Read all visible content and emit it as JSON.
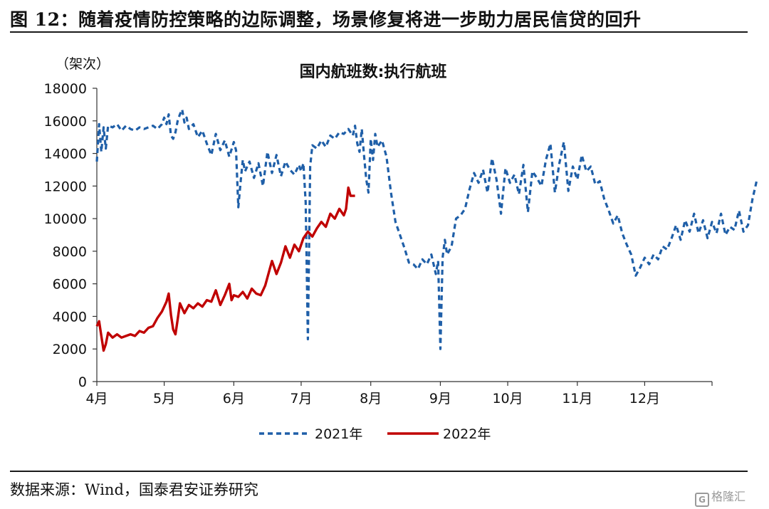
{
  "figure": {
    "title": "图 12：随着疫情防控策略的边际调整，场景修复将进一步助力居民信贷的回升",
    "source": "数据来源：Wind，国泰君安证券研究",
    "watermark": "格隆汇",
    "watermark_icon": "G"
  },
  "colors": {
    "series_2021": "#1f5fa8",
    "series_2022": "#c00000",
    "axis": "#333333"
  },
  "chart_data": {
    "type": "line",
    "title": "国内航班数:执行航班",
    "unit_label": "（架次）",
    "xlabel": "",
    "ylabel": "",
    "ylim": [
      0,
      18000
    ],
    "yticks": [
      0,
      2000,
      4000,
      6000,
      8000,
      10000,
      12000,
      14000,
      16000,
      18000
    ],
    "x_domain": [
      "04-01",
      "12-31"
    ],
    "xticks": [
      {
        "date": "04-01",
        "label": "4月"
      },
      {
        "date": "05-01",
        "label": "5月"
      },
      {
        "date": "06-01",
        "label": "6月"
      },
      {
        "date": "07-01",
        "label": "7月"
      },
      {
        "date": "08-01",
        "label": "8月"
      },
      {
        "date": "09-01",
        "label": "9月"
      },
      {
        "date": "10-01",
        "label": "10月"
      },
      {
        "date": "11-01",
        "label": "11月"
      },
      {
        "date": "12-01",
        "label": "12月"
      }
    ],
    "grid": false,
    "legend": "bottom-center",
    "series": [
      {
        "name": "2021年",
        "style": "dashed",
        "points": [
          [
            "04-01",
            13500
          ],
          [
            "04-02",
            15800
          ],
          [
            "04-03",
            14100
          ],
          [
            "04-04",
            15600
          ],
          [
            "04-05",
            14300
          ],
          [
            "04-06",
            15700
          ],
          [
            "04-08",
            15600
          ],
          [
            "04-10",
            15800
          ],
          [
            "04-12",
            15400
          ],
          [
            "04-14",
            15700
          ],
          [
            "04-16",
            15500
          ],
          [
            "04-18",
            15400
          ],
          [
            "04-20",
            15600
          ],
          [
            "04-22",
            15500
          ],
          [
            "04-24",
            15600
          ],
          [
            "04-26",
            15700
          ],
          [
            "04-28",
            15500
          ],
          [
            "04-30",
            15800
          ],
          [
            "05-01",
            16200
          ],
          [
            "05-02",
            15800
          ],
          [
            "05-03",
            16400
          ],
          [
            "05-04",
            15100
          ],
          [
            "05-05",
            14900
          ],
          [
            "05-06",
            15300
          ],
          [
            "05-07",
            16000
          ],
          [
            "05-08",
            16400
          ],
          [
            "05-09",
            16700
          ],
          [
            "05-10",
            15900
          ],
          [
            "05-11",
            16200
          ],
          [
            "05-12",
            15500
          ],
          [
            "05-14",
            15800
          ],
          [
            "05-16",
            15000
          ],
          [
            "05-18",
            15400
          ],
          [
            "05-20",
            14600
          ],
          [
            "05-22",
            13900
          ],
          [
            "05-24",
            15200
          ],
          [
            "05-26",
            14200
          ],
          [
            "05-28",
            14800
          ],
          [
            "05-30",
            13800
          ],
          [
            "06-01",
            14700
          ],
          [
            "06-02",
            14200
          ],
          [
            "06-03",
            10700
          ],
          [
            "06-04",
            12200
          ],
          [
            "06-05",
            13600
          ],
          [
            "06-06",
            12900
          ],
          [
            "06-08",
            13500
          ],
          [
            "06-10",
            12500
          ],
          [
            "06-12",
            13400
          ],
          [
            "06-14",
            12000
          ],
          [
            "06-16",
            14100
          ],
          [
            "06-18",
            12800
          ],
          [
            "06-20",
            13900
          ],
          [
            "06-22",
            12600
          ],
          [
            "06-24",
            13500
          ],
          [
            "06-26",
            13000
          ],
          [
            "06-28",
            12700
          ],
          [
            "06-30",
            13300
          ],
          [
            "07-01",
            12900
          ],
          [
            "07-02",
            13400
          ],
          [
            "07-03",
            11000
          ],
          [
            "07-04",
            2600
          ],
          [
            "07-05",
            13200
          ],
          [
            "07-06",
            14500
          ],
          [
            "07-08",
            14300
          ],
          [
            "07-10",
            14800
          ],
          [
            "07-12",
            14400
          ],
          [
            "07-14",
            15100
          ],
          [
            "07-16",
            14900
          ],
          [
            "07-18",
            15300
          ],
          [
            "07-20",
            15200
          ],
          [
            "07-22",
            15500
          ],
          [
            "07-24",
            15100
          ],
          [
            "07-25",
            15700
          ],
          [
            "07-26",
            14600
          ],
          [
            "07-27",
            14100
          ],
          [
            "07-28",
            15500
          ],
          [
            "07-29",
            13900
          ],
          [
            "07-30",
            12400
          ],
          [
            "07-31",
            11600
          ],
          [
            "08-01",
            14900
          ],
          [
            "08-02",
            13600
          ],
          [
            "08-03",
            15200
          ],
          [
            "08-04",
            14400
          ],
          [
            "08-06",
            14800
          ],
          [
            "08-08",
            13800
          ],
          [
            "08-10",
            11600
          ],
          [
            "08-12",
            9800
          ],
          [
            "08-14",
            9000
          ],
          [
            "08-16",
            8200
          ],
          [
            "08-18",
            7300
          ],
          [
            "08-20",
            7200
          ],
          [
            "08-22",
            6900
          ],
          [
            "08-24",
            7500
          ],
          [
            "08-26",
            7200
          ],
          [
            "08-28",
            7800
          ],
          [
            "08-30",
            6600
          ],
          [
            "08-31",
            7400
          ],
          [
            "09-01",
            2000
          ],
          [
            "09-02",
            7600
          ],
          [
            "09-03",
            8700
          ],
          [
            "09-04",
            7800
          ],
          [
            "09-06",
            8300
          ],
          [
            "09-08",
            10000
          ],
          [
            "09-10",
            10200
          ],
          [
            "09-12",
            10600
          ],
          [
            "09-14",
            11800
          ],
          [
            "09-16",
            12800
          ],
          [
            "09-18",
            12200
          ],
          [
            "09-20",
            13000
          ],
          [
            "09-22",
            11600
          ],
          [
            "09-24",
            13700
          ],
          [
            "09-26",
            12400
          ],
          [
            "09-28",
            10300
          ],
          [
            "09-30",
            13100
          ],
          [
            "10-02",
            12200
          ],
          [
            "10-04",
            12700
          ],
          [
            "10-06",
            11500
          ],
          [
            "10-08",
            13300
          ],
          [
            "10-10",
            10400
          ],
          [
            "10-12",
            12900
          ],
          [
            "10-14",
            12500
          ],
          [
            "10-16",
            12000
          ],
          [
            "10-18",
            13600
          ],
          [
            "10-20",
            14600
          ],
          [
            "10-22",
            11600
          ],
          [
            "10-24",
            13400
          ],
          [
            "10-26",
            14700
          ],
          [
            "10-28",
            11700
          ],
          [
            "10-30",
            13200
          ],
          [
            "11-01",
            12400
          ],
          [
            "11-03",
            13900
          ],
          [
            "11-05",
            12900
          ],
          [
            "11-07",
            13200
          ],
          [
            "11-09",
            12100
          ],
          [
            "11-11",
            12300
          ],
          [
            "11-13",
            11200
          ],
          [
            "11-15",
            10500
          ],
          [
            "11-17",
            9700
          ],
          [
            "11-19",
            10200
          ],
          [
            "11-21",
            9100
          ],
          [
            "11-23",
            8400
          ],
          [
            "11-25",
            7800
          ],
          [
            "11-27",
            6500
          ],
          [
            "11-29",
            7000
          ],
          [
            "12-01",
            7600
          ],
          [
            "12-03",
            7200
          ],
          [
            "12-05",
            7800
          ],
          [
            "12-07",
            7500
          ],
          [
            "12-09",
            8300
          ],
          [
            "12-11",
            8100
          ],
          [
            "12-13",
            8800
          ],
          [
            "12-15",
            9600
          ],
          [
            "12-17",
            8700
          ],
          [
            "12-19",
            9900
          ],
          [
            "12-21",
            9200
          ],
          [
            "12-23",
            10300
          ],
          [
            "12-25",
            9100
          ],
          [
            "12-27",
            9900
          ],
          [
            "12-29",
            8800
          ],
          [
            "12-31",
            9800
          ],
          [
            "01-02",
            9100
          ],
          [
            "01-04",
            10300
          ],
          [
            "01-06",
            9000
          ],
          [
            "01-08",
            9500
          ],
          [
            "01-10",
            9300
          ],
          [
            "01-12",
            10500
          ],
          [
            "01-14",
            9200
          ],
          [
            "01-16",
            9600
          ],
          [
            "01-18",
            11200
          ],
          [
            "01-20",
            12400
          ]
        ]
      },
      {
        "name": "2022年",
        "style": "solid",
        "points": [
          [
            "04-01",
            3400
          ],
          [
            "04-02",
            3700
          ],
          [
            "04-03",
            2800
          ],
          [
            "04-04",
            1900
          ],
          [
            "04-05",
            2300
          ],
          [
            "04-06",
            3000
          ],
          [
            "04-08",
            2700
          ],
          [
            "04-10",
            2900
          ],
          [
            "04-12",
            2700
          ],
          [
            "04-14",
            2800
          ],
          [
            "04-16",
            2900
          ],
          [
            "04-18",
            2800
          ],
          [
            "04-20",
            3100
          ],
          [
            "04-22",
            3000
          ],
          [
            "04-24",
            3300
          ],
          [
            "04-26",
            3400
          ],
          [
            "04-28",
            3900
          ],
          [
            "04-30",
            4300
          ],
          [
            "05-02",
            4900
          ],
          [
            "05-03",
            5400
          ],
          [
            "05-04",
            4100
          ],
          [
            "05-05",
            3200
          ],
          [
            "05-06",
            2900
          ],
          [
            "05-07",
            3800
          ],
          [
            "05-08",
            4800
          ],
          [
            "05-10",
            4200
          ],
          [
            "05-12",
            4700
          ],
          [
            "05-14",
            4500
          ],
          [
            "05-16",
            4800
          ],
          [
            "05-18",
            4600
          ],
          [
            "05-20",
            5000
          ],
          [
            "05-22",
            4900
          ],
          [
            "05-24",
            5600
          ],
          [
            "05-26",
            4700
          ],
          [
            "05-28",
            5300
          ],
          [
            "05-30",
            6000
          ],
          [
            "05-31",
            5000
          ],
          [
            "06-01",
            5300
          ],
          [
            "06-03",
            5200
          ],
          [
            "06-05",
            5500
          ],
          [
            "06-07",
            5100
          ],
          [
            "06-09",
            5700
          ],
          [
            "06-11",
            5400
          ],
          [
            "06-13",
            5300
          ],
          [
            "06-15",
            5900
          ],
          [
            "06-17",
            6900
          ],
          [
            "06-18",
            7400
          ],
          [
            "06-20",
            6600
          ],
          [
            "06-22",
            7300
          ],
          [
            "06-24",
            8300
          ],
          [
            "06-26",
            7600
          ],
          [
            "06-28",
            8400
          ],
          [
            "06-30",
            8000
          ],
          [
            "07-02",
            8800
          ],
          [
            "07-04",
            9200
          ],
          [
            "07-06",
            8900
          ],
          [
            "07-08",
            9400
          ],
          [
            "07-10",
            9800
          ],
          [
            "07-12",
            9500
          ],
          [
            "07-14",
            10300
          ],
          [
            "07-16",
            10000
          ],
          [
            "07-18",
            10600
          ],
          [
            "07-20",
            10200
          ],
          [
            "07-21",
            10600
          ],
          [
            "07-22",
            11900
          ],
          [
            "07-23",
            11400
          ],
          [
            "07-25",
            11400
          ]
        ]
      }
    ]
  }
}
